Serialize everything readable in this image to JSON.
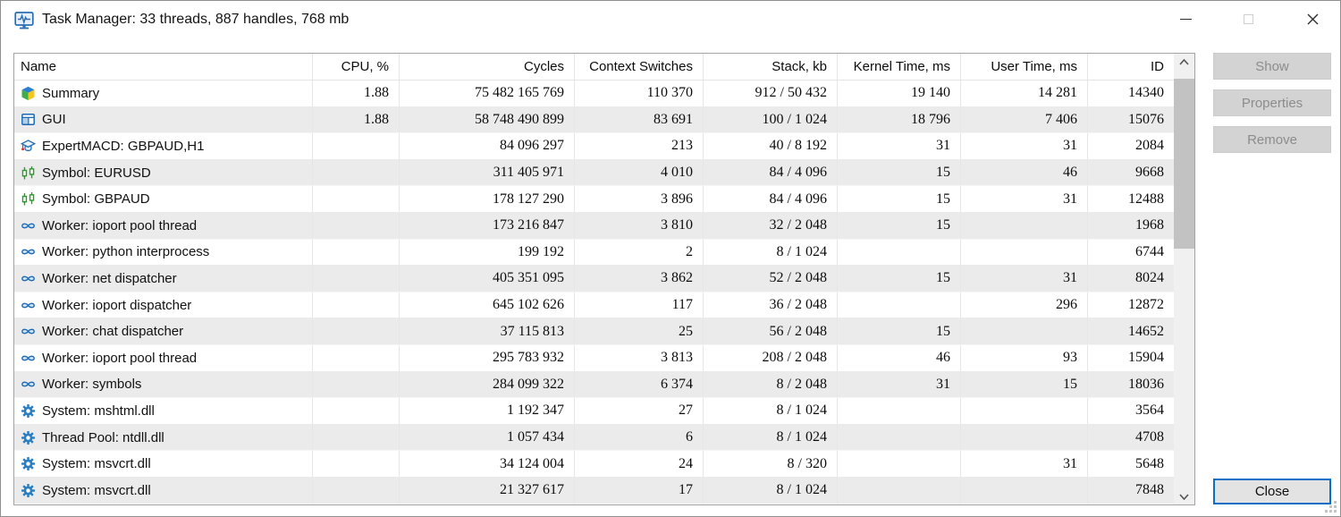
{
  "window": {
    "title": "Task Manager: 33 threads, 887 handles, 768 mb"
  },
  "side_buttons": {
    "show": "Show",
    "properties": "Properties",
    "remove": "Remove",
    "close": "Close"
  },
  "table": {
    "columns": [
      {
        "label": "Name"
      },
      {
        "label": "CPU, %"
      },
      {
        "label": "Cycles"
      },
      {
        "label": "Context Switches"
      },
      {
        "label": "Stack, kb"
      },
      {
        "label": "Kernel Time, ms"
      },
      {
        "label": "User Time, ms"
      },
      {
        "label": "ID"
      }
    ],
    "rows": [
      {
        "icon": "summary-icon",
        "name": "Summary",
        "cpu": "1.88",
        "cycles": "75 482 165 769",
        "context_switches": "110 370",
        "stack": "912 / 50 432",
        "kernel_time": "19 140",
        "user_time": "14 281",
        "id": "14340"
      },
      {
        "icon": "gui-icon",
        "name": "GUI",
        "cpu": "1.88",
        "cycles": "58 748 490 899",
        "context_switches": "83 691",
        "stack": "100 / 1 024",
        "kernel_time": "18 796",
        "user_time": "7 406",
        "id": "15076"
      },
      {
        "icon": "expert-icon",
        "name": "ExpertMACD: GBPAUD,H1",
        "cpu": "",
        "cycles": "84 096 297",
        "context_switches": "213",
        "stack": "40 / 8 192",
        "kernel_time": "31",
        "user_time": "31",
        "id": "2084"
      },
      {
        "icon": "symbol-icon",
        "name": "Symbol: EURUSD",
        "cpu": "",
        "cycles": "311 405 971",
        "context_switches": "4 010",
        "stack": "84 / 4 096",
        "kernel_time": "15",
        "user_time": "46",
        "id": "9668"
      },
      {
        "icon": "symbol-icon",
        "name": "Symbol: GBPAUD",
        "cpu": "",
        "cycles": "178 127 290",
        "context_switches": "3 896",
        "stack": "84 / 4 096",
        "kernel_time": "15",
        "user_time": "31",
        "id": "12488"
      },
      {
        "icon": "worker-icon",
        "name": "Worker: ioport pool thread",
        "cpu": "",
        "cycles": "173 216 847",
        "context_switches": "3 810",
        "stack": "32 / 2 048",
        "kernel_time": "15",
        "user_time": "",
        "id": "1968"
      },
      {
        "icon": "worker-icon",
        "name": "Worker: python interprocess",
        "cpu": "",
        "cycles": "199 192",
        "context_switches": "2",
        "stack": "8 / 1 024",
        "kernel_time": "",
        "user_time": "",
        "id": "6744"
      },
      {
        "icon": "worker-icon",
        "name": "Worker: net dispatcher",
        "cpu": "",
        "cycles": "405 351 095",
        "context_switches": "3 862",
        "stack": "52 / 2 048",
        "kernel_time": "15",
        "user_time": "31",
        "id": "8024"
      },
      {
        "icon": "worker-icon",
        "name": "Worker: ioport dispatcher",
        "cpu": "",
        "cycles": "645 102 626",
        "context_switches": "117",
        "stack": "36 / 2 048",
        "kernel_time": "",
        "user_time": "296",
        "id": "12872"
      },
      {
        "icon": "worker-icon",
        "name": "Worker: chat dispatcher",
        "cpu": "",
        "cycles": "37 115 813",
        "context_switches": "25",
        "stack": "56 / 2 048",
        "kernel_time": "15",
        "user_time": "",
        "id": "14652"
      },
      {
        "icon": "worker-icon",
        "name": "Worker: ioport pool thread",
        "cpu": "",
        "cycles": "295 783 932",
        "context_switches": "3 813",
        "stack": "208 / 2 048",
        "kernel_time": "46",
        "user_time": "93",
        "id": "15904"
      },
      {
        "icon": "worker-icon",
        "name": "Worker: symbols",
        "cpu": "",
        "cycles": "284 099 322",
        "context_switches": "6 374",
        "stack": "8 / 2 048",
        "kernel_time": "31",
        "user_time": "15",
        "id": "18036"
      },
      {
        "icon": "gear-icon",
        "name": "System: mshtml.dll",
        "cpu": "",
        "cycles": "1 192 347",
        "context_switches": "27",
        "stack": "8 / 1 024",
        "kernel_time": "",
        "user_time": "",
        "id": "3564"
      },
      {
        "icon": "gear-icon",
        "name": "Thread Pool: ntdll.dll",
        "cpu": "",
        "cycles": "1 057 434",
        "context_switches": "6",
        "stack": "8 / 1 024",
        "kernel_time": "",
        "user_time": "",
        "id": "4708"
      },
      {
        "icon": "gear-icon",
        "name": "System: msvcrt.dll",
        "cpu": "",
        "cycles": "34 124 004",
        "context_switches": "24",
        "stack": "8 / 320",
        "kernel_time": "",
        "user_time": "31",
        "id": "5648"
      },
      {
        "icon": "gear-icon",
        "name": "System: msvcrt.dll",
        "cpu": "",
        "cycles": "21 327 617",
        "context_switches": "17",
        "stack": "8 / 1 024",
        "kernel_time": "",
        "user_time": "",
        "id": "7848"
      }
    ]
  },
  "colors": {
    "accent_blue": "#0a70c7",
    "icon_blue": "#1d6ab2",
    "candle_green": "#1fa11f",
    "row_alt": "#ebebeb",
    "disabled_bg": "#d3d3d3",
    "disabled_text": "#8c8c8c"
  }
}
